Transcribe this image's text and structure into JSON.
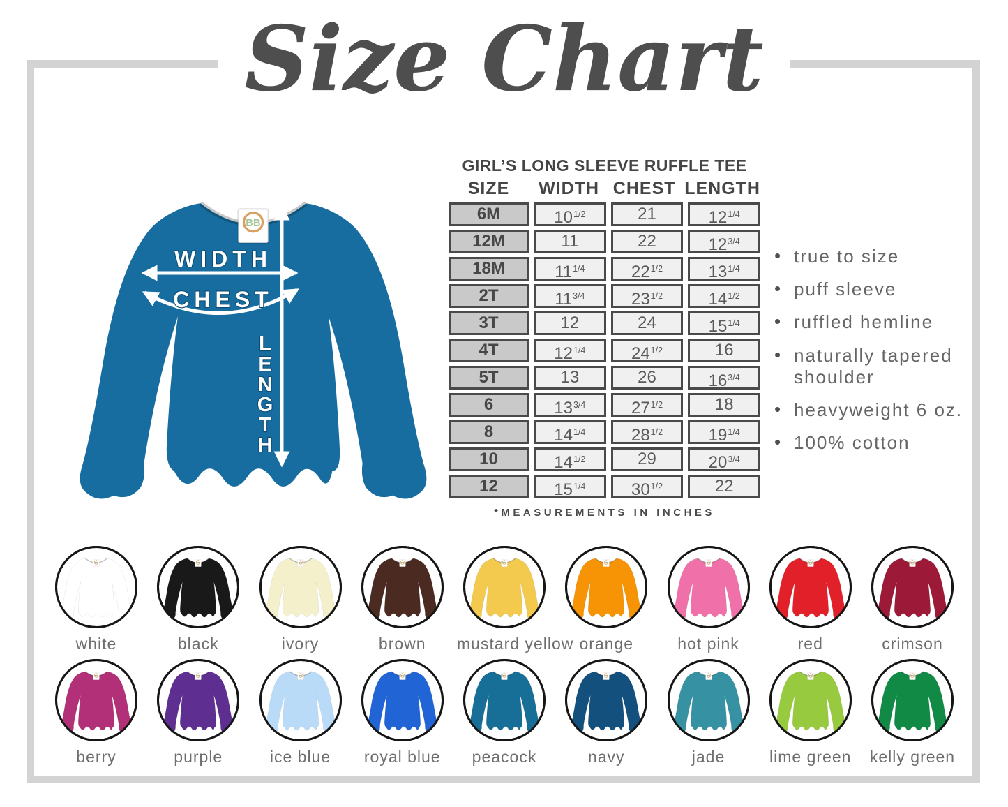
{
  "title": "Size Chart",
  "chart_data": {
    "type": "table",
    "title": "GIRL’S LONG SLEEVE RUFFLE TEE",
    "columns": [
      "SIZE",
      "WIDTH",
      "CHEST",
      "LENGTH"
    ],
    "rows": [
      [
        "6M",
        "10 1/2",
        "21",
        "12 1/4"
      ],
      [
        "12M",
        "11",
        "22",
        "12 3/4"
      ],
      [
        "18M",
        "11 1/4",
        "22 1/2",
        "13 1/4"
      ],
      [
        "2T",
        "11 3/4",
        "23 1/2",
        "14 1/2"
      ],
      [
        "3T",
        "12",
        "24",
        "15 1/4"
      ],
      [
        "4T",
        "12 1/4",
        "24 1/2",
        "16"
      ],
      [
        "5T",
        "13",
        "26",
        "16 3/4"
      ],
      [
        "6",
        "13 3/4",
        "27 1/2",
        "18"
      ],
      [
        "8",
        "14 1/4",
        "28 1/2",
        "19 1/4"
      ],
      [
        "10",
        "14 1/2",
        "29",
        "20 3/4"
      ],
      [
        "12",
        "15 1/4",
        "30 1/2",
        "22"
      ]
    ],
    "footnote": "*MEASUREMENTS IN INCHES",
    "units": "inches"
  },
  "diagram": {
    "width_label": "WIDTH",
    "chest_label": "CHEST",
    "length_label": "LENGTH",
    "shirt_color": "#176da0",
    "tag_text": "BB"
  },
  "features": [
    "true to size",
    "puff sleeve",
    "ruffled hemline",
    "naturally tapered shoulder",
    "heavyweight 6 oz.",
    "100% cotton"
  ],
  "swatch_rows": [
    [
      {
        "name": "white",
        "color": "#ffffff"
      },
      {
        "name": "black",
        "color": "#191919"
      },
      {
        "name": "ivory",
        "color": "#f3f0cb"
      },
      {
        "name": "brown",
        "color": "#4b2a21"
      },
      {
        "name": "mustard yellow",
        "color": "#f3c94e"
      },
      {
        "name": "orange",
        "color": "#f69405"
      },
      {
        "name": "hot pink",
        "color": "#f070a9"
      },
      {
        "name": "red",
        "color": "#e2202a"
      },
      {
        "name": "crimson",
        "color": "#9c1a37"
      }
    ],
    [
      {
        "name": "berry",
        "color": "#b23077"
      },
      {
        "name": "purple",
        "color": "#5e2e91"
      },
      {
        "name": "ice blue",
        "color": "#b9dbf8"
      },
      {
        "name": "royal blue",
        "color": "#2064d6"
      },
      {
        "name": "peacock",
        "color": "#176e96"
      },
      {
        "name": "navy",
        "color": "#14507d"
      },
      {
        "name": "jade",
        "color": "#3692a3"
      },
      {
        "name": "lime green",
        "color": "#98ca3f"
      },
      {
        "name": "kelly green",
        "color": "#108a45"
      }
    ]
  ]
}
